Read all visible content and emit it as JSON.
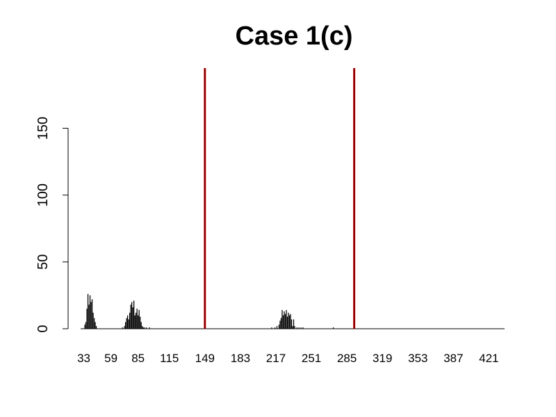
{
  "chart_data": {
    "type": "bar",
    "title": "Case 1(c)",
    "xlabel": "",
    "ylabel": "",
    "x_range": [
      18,
      436
    ],
    "ylim": [
      0,
      195
    ],
    "y_ticks": [
      0,
      50,
      100,
      150
    ],
    "x_tick_labels": [
      "33",
      "59",
      "85",
      "115",
      "149",
      "183",
      "217",
      "251",
      "285",
      "319",
      "353",
      "387",
      "421"
    ],
    "colors": {
      "bars": "#000000",
      "vlines": "#e00000",
      "axis": "#000000"
    },
    "grid": false,
    "vertical_lines": [
      149,
      292
    ],
    "series": [
      {
        "x": [
          34,
          35,
          36,
          37,
          38,
          39,
          40,
          41,
          42,
          43,
          44,
          45,
          70,
          72,
          73,
          74,
          75,
          76,
          77,
          78,
          79,
          80,
          81,
          82,
          83,
          84,
          85,
          86,
          87,
          88,
          89,
          90,
          91,
          93,
          96,
          213,
          216,
          218,
          220,
          221,
          222,
          223,
          224,
          225,
          226,
          227,
          228,
          229,
          230,
          231,
          232,
          233,
          234,
          235,
          237,
          239,
          241,
          243,
          272
        ],
        "values": [
          3,
          5,
          15,
          26,
          18,
          25,
          20,
          22,
          12,
          8,
          5,
          2,
          1,
          2,
          5,
          8,
          10,
          7,
          12,
          18,
          20,
          16,
          21,
          10,
          12,
          15,
          10,
          14,
          9,
          5,
          2,
          1,
          1,
          1,
          1,
          1,
          1,
          2,
          3,
          6,
          8,
          14,
          10,
          13,
          11,
          14,
          9,
          12,
          10,
          11,
          7,
          2,
          7,
          2,
          1,
          1,
          1,
          1,
          1
        ]
      }
    ]
  }
}
